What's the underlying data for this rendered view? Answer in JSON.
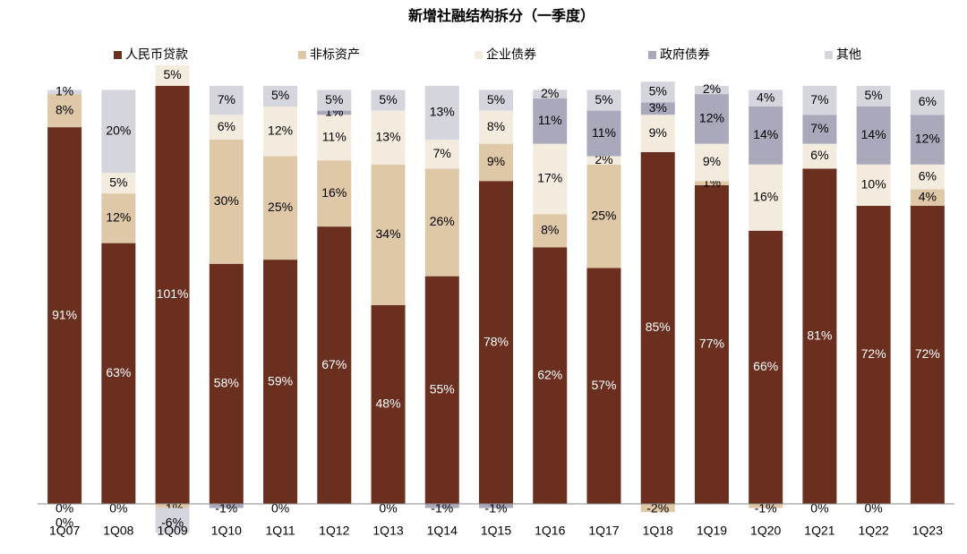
{
  "chart_data": {
    "type": "stacked_bar",
    "title": "新增社融结构拆分（一季度）",
    "categories": [
      "1Q07",
      "1Q08",
      "1Q09",
      "1Q10",
      "1Q11",
      "1Q12",
      "1Q13",
      "1Q14",
      "1Q15",
      "1Q16",
      "1Q17",
      "1Q18",
      "1Q19",
      "1Q20",
      "1Q21",
      "1Q22",
      "1Q23"
    ],
    "ylim": [
      -8,
      104
    ],
    "legend": "top",
    "series": [
      {
        "name": "人民币贷款",
        "color": "#6b2f20",
        "values": [
          91,
          63,
          101,
          58,
          59,
          67,
          48,
          55,
          78,
          62,
          57,
          85,
          77,
          66,
          81,
          72,
          72
        ],
        "value_labels": [
          "91%",
          "63%",
          "101%",
          "58%",
          "59%",
          "67%",
          "48%",
          "55%",
          "78%",
          "62%",
          "57%",
          "85%",
          "77%",
          "66%",
          "81%",
          "72%",
          "72%"
        ]
      },
      {
        "name": "非标资产",
        "color": "#dfc8a8",
        "values": [
          8,
          12,
          -1,
          30,
          25,
          16,
          34,
          26,
          9,
          8,
          25,
          -2,
          1,
          -1,
          0,
          0,
          4
        ],
        "value_labels": [
          "8%",
          "12%",
          "-1%",
          "30%",
          "25%",
          "16%",
          "34%",
          "26%",
          "9%",
          "8%",
          "25%",
          "-2%",
          "1%",
          "-1%",
          "0%",
          "0%",
          "4%"
        ]
      },
      {
        "name": "企业债券",
        "color": "#f4ebdf",
        "values": [
          0,
          5,
          5,
          6,
          12,
          11,
          13,
          7,
          8,
          17,
          2,
          9,
          9,
          16,
          6,
          10,
          6
        ],
        "value_labels": [
          "0%",
          "5%",
          "5%",
          "6%",
          "12%",
          "11%",
          "13%",
          "7%",
          "8%",
          "17%",
          "2%",
          "9%",
          "9%",
          "16%",
          "6%",
          "10%",
          "6%"
        ]
      },
      {
        "name": "政府债券",
        "color": "#a9a9bb",
        "values": [
          0,
          0,
          0,
          -1,
          0,
          1,
          0,
          -1,
          -1,
          11,
          11,
          3,
          12,
          14,
          7,
          14,
          12
        ],
        "value_labels": [
          "0%",
          "0%",
          null,
          "-1%",
          "0%",
          "1%",
          "0%",
          "-1%",
          "-1%",
          "11%",
          "11%",
          "3%",
          "12%",
          "14%",
          "7%",
          "14%",
          "12%"
        ]
      },
      {
        "name": "其他",
        "color": "#d5d5de",
        "values": [
          1,
          20,
          -6,
          7,
          5,
          5,
          5,
          13,
          5,
          2,
          5,
          5,
          2,
          4,
          7,
          5,
          6
        ],
        "value_labels": [
          "1%",
          "20%",
          "-6%",
          "7%",
          "5%",
          "5%",
          "5%",
          "13%",
          "5%",
          "2%",
          "5%",
          "5%",
          "2%",
          "4%",
          "7%",
          "5%",
          "6%"
        ]
      }
    ]
  }
}
